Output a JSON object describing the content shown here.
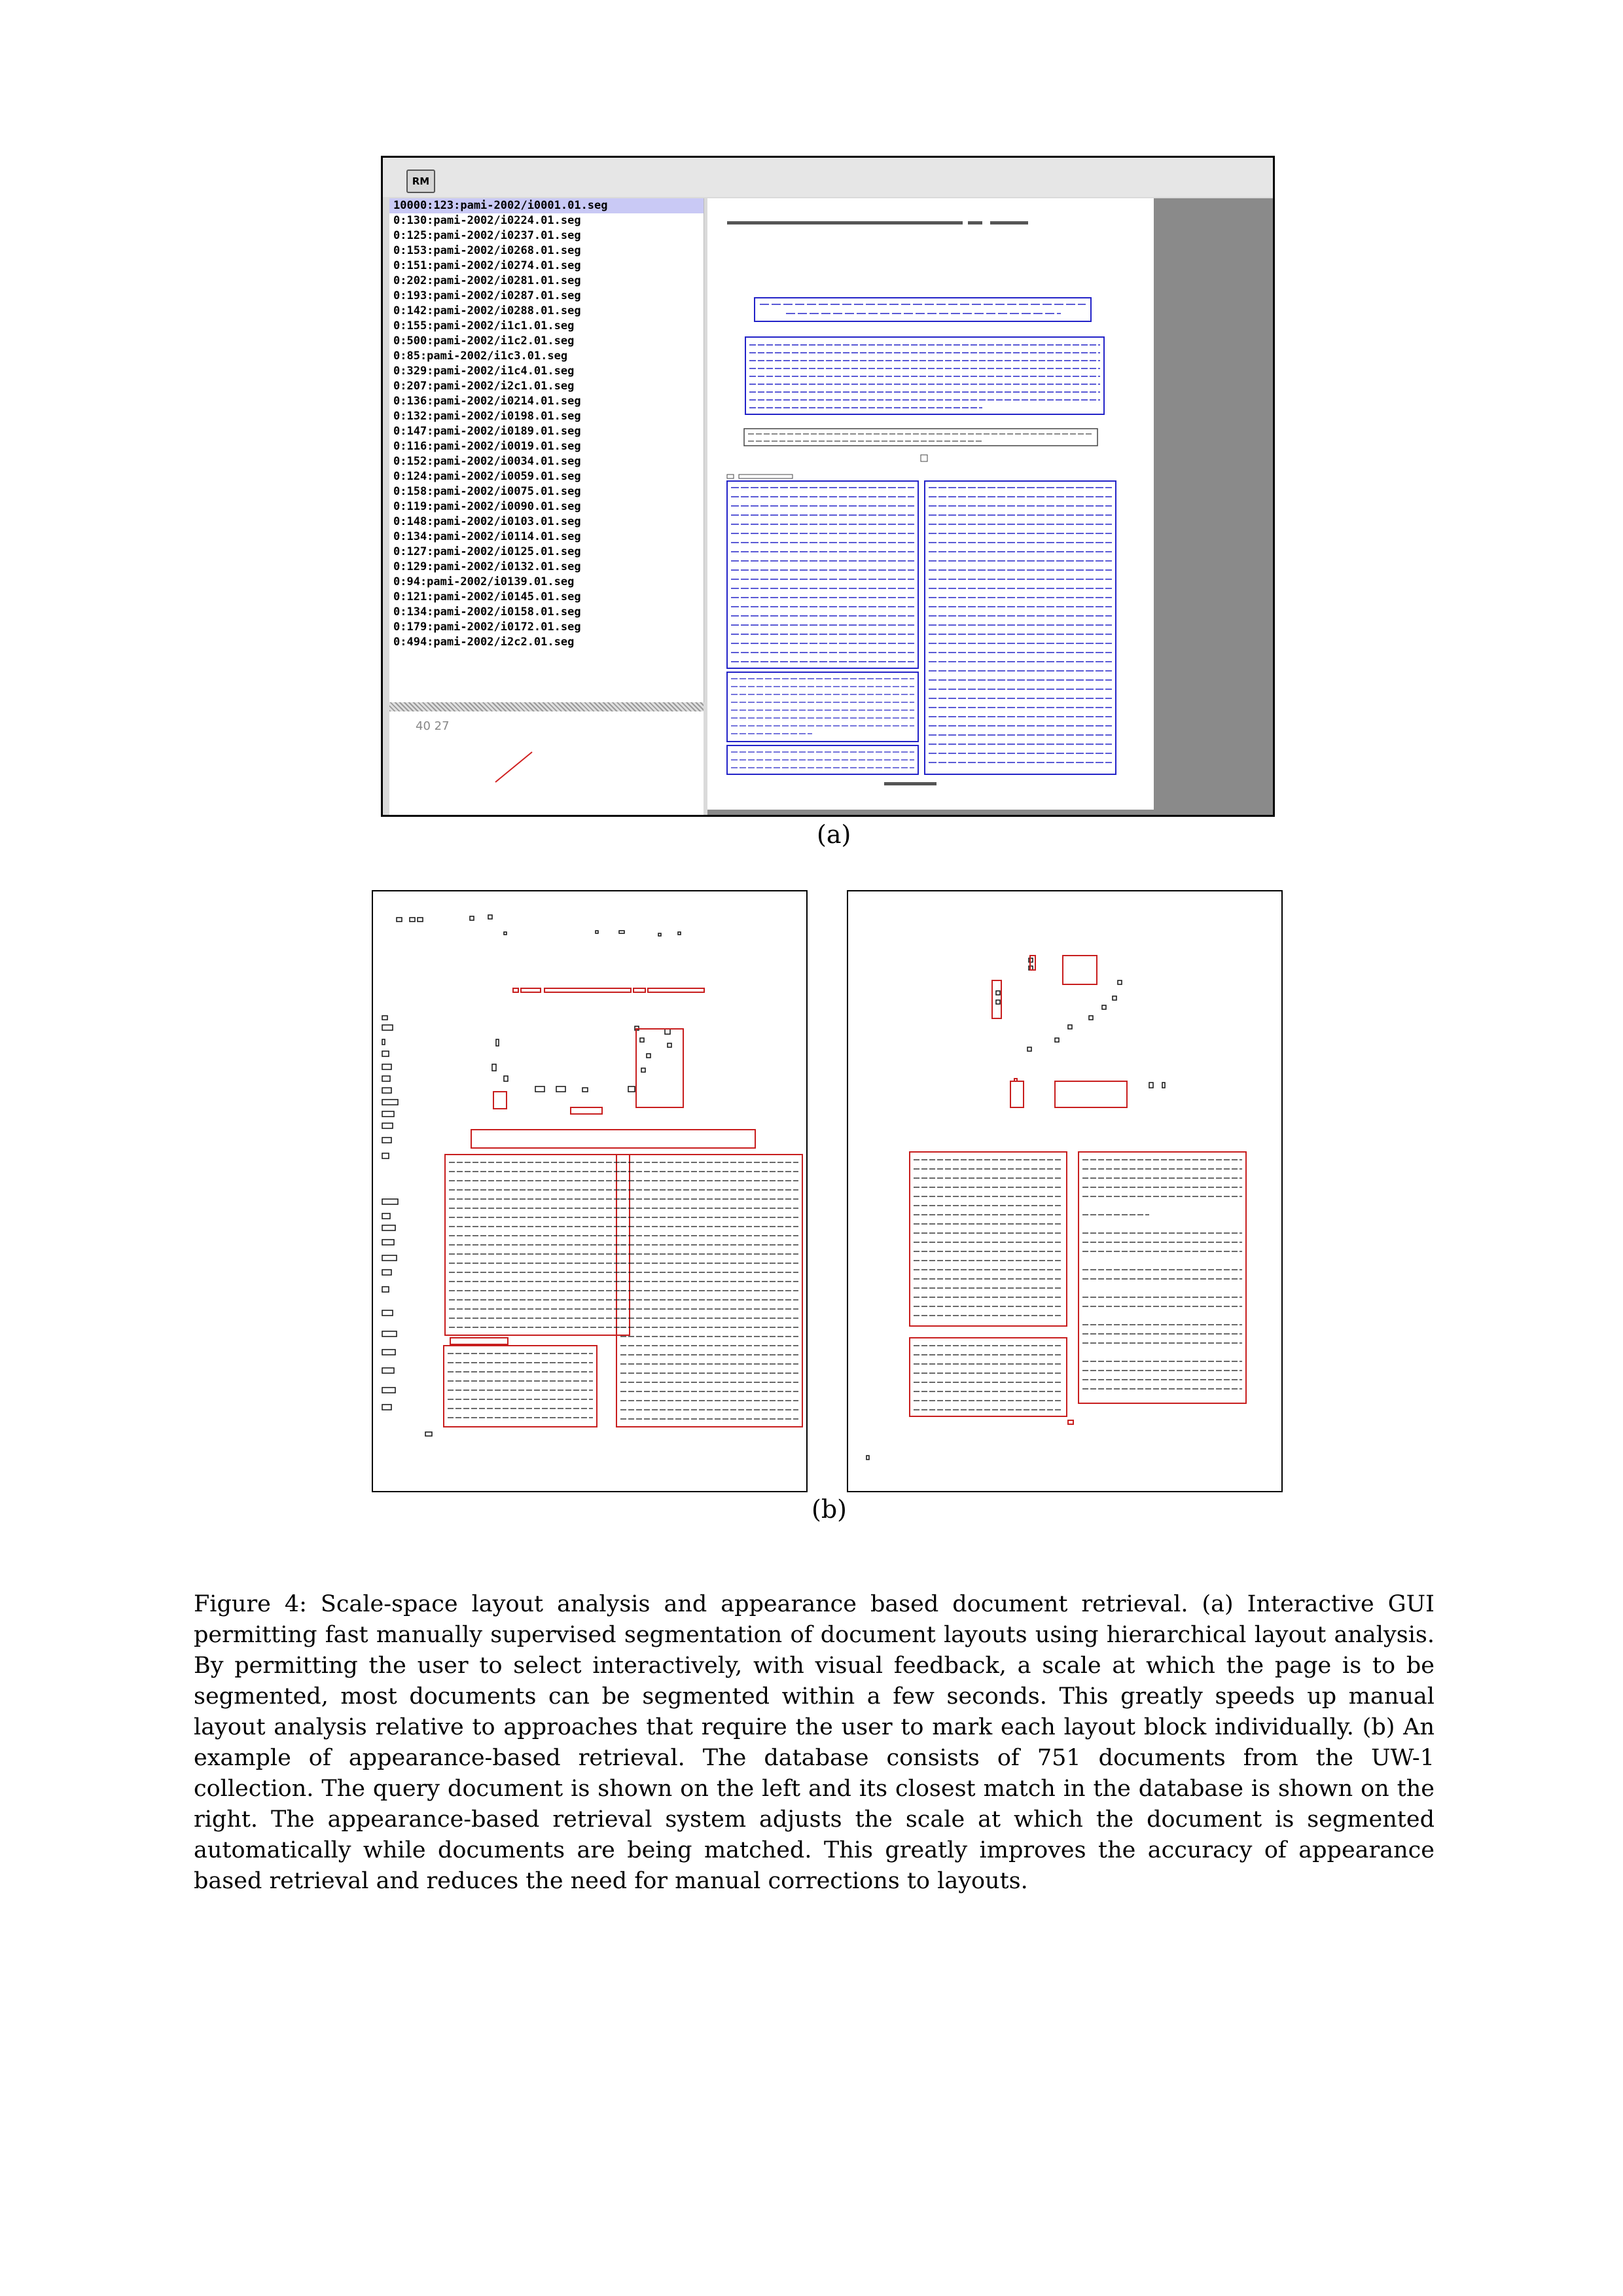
{
  "figure_a": {
    "rm_button_label": "RM",
    "files": [
      "10000:123:pami-2002/i0001.01.seg",
      "0:130:pami-2002/i0224.01.seg",
      "0:125:pami-2002/i0237.01.seg",
      "0:153:pami-2002/i0268.01.seg",
      "0:151:pami-2002/i0274.01.seg",
      "0:202:pami-2002/i0281.01.seg",
      "0:193:pami-2002/i0287.01.seg",
      "0:142:pami-2002/i0288.01.seg",
      "0:155:pami-2002/i1c1.01.seg",
      "0:500:pami-2002/i1c2.01.seg",
      "0:85:pami-2002/i1c3.01.seg",
      "0:329:pami-2002/i1c4.01.seg",
      "0:207:pami-2002/i2c1.01.seg",
      "0:136:pami-2002/i0214.01.seg",
      "0:132:pami-2002/i0198.01.seg",
      "0:147:pami-2002/i0189.01.seg",
      "0:116:pami-2002/i0019.01.seg",
      "0:152:pami-2002/i0034.01.seg",
      "0:124:pami-2002/i0059.01.seg",
      "0:158:pami-2002/i0075.01.seg",
      "0:119:pami-2002/i0090.01.seg",
      "0:148:pami-2002/i0103.01.seg",
      "0:134:pami-2002/i0114.01.seg",
      "0:127:pami-2002/i0125.01.seg",
      "0:129:pami-2002/i0132.01.seg",
      "0:94:pami-2002/i0139.01.seg",
      "0:121:pami-2002/i0145.01.seg",
      "0:134:pami-2002/i0158.01.seg",
      "0:179:pami-2002/i0172.01.seg",
      "0:494:pami-2002/i2c2.01.seg"
    ],
    "coordinates": "40 27",
    "label": "(a)"
  },
  "figure_b": {
    "label": "(b)"
  },
  "caption": "Figure 4: Scale-space layout analysis and appearance based document retrieval. (a) Interactive GUI permitting fast manually supervised segmentation of document layouts using hierarchical layout analysis. By permitting the user to select interactively, with visual feedback, a scale at which the page is to be segmented, most documents can be segmented within a few seconds. This greatly speeds up manual layout analysis relative to approaches that require the user to mark each layout block individually. (b) An example of appearance-based retrieval. The database consists of 751 documents from the UW-1 collection. The query document is shown on the left and its closest match in the database is shown on the right. The appearance-based retrieval system adjusts the scale at which the document is segmented automatically while documents are being matched. This greatly improves the accuracy of appearance based retrieval and reduces the need for manual corrections to layouts.",
  "colors": {
    "segment_blue": "#2323c8",
    "segment_red": "#c81e1e",
    "selection": "#c9c9f5",
    "viewer_gray": "#8a8a8a"
  }
}
